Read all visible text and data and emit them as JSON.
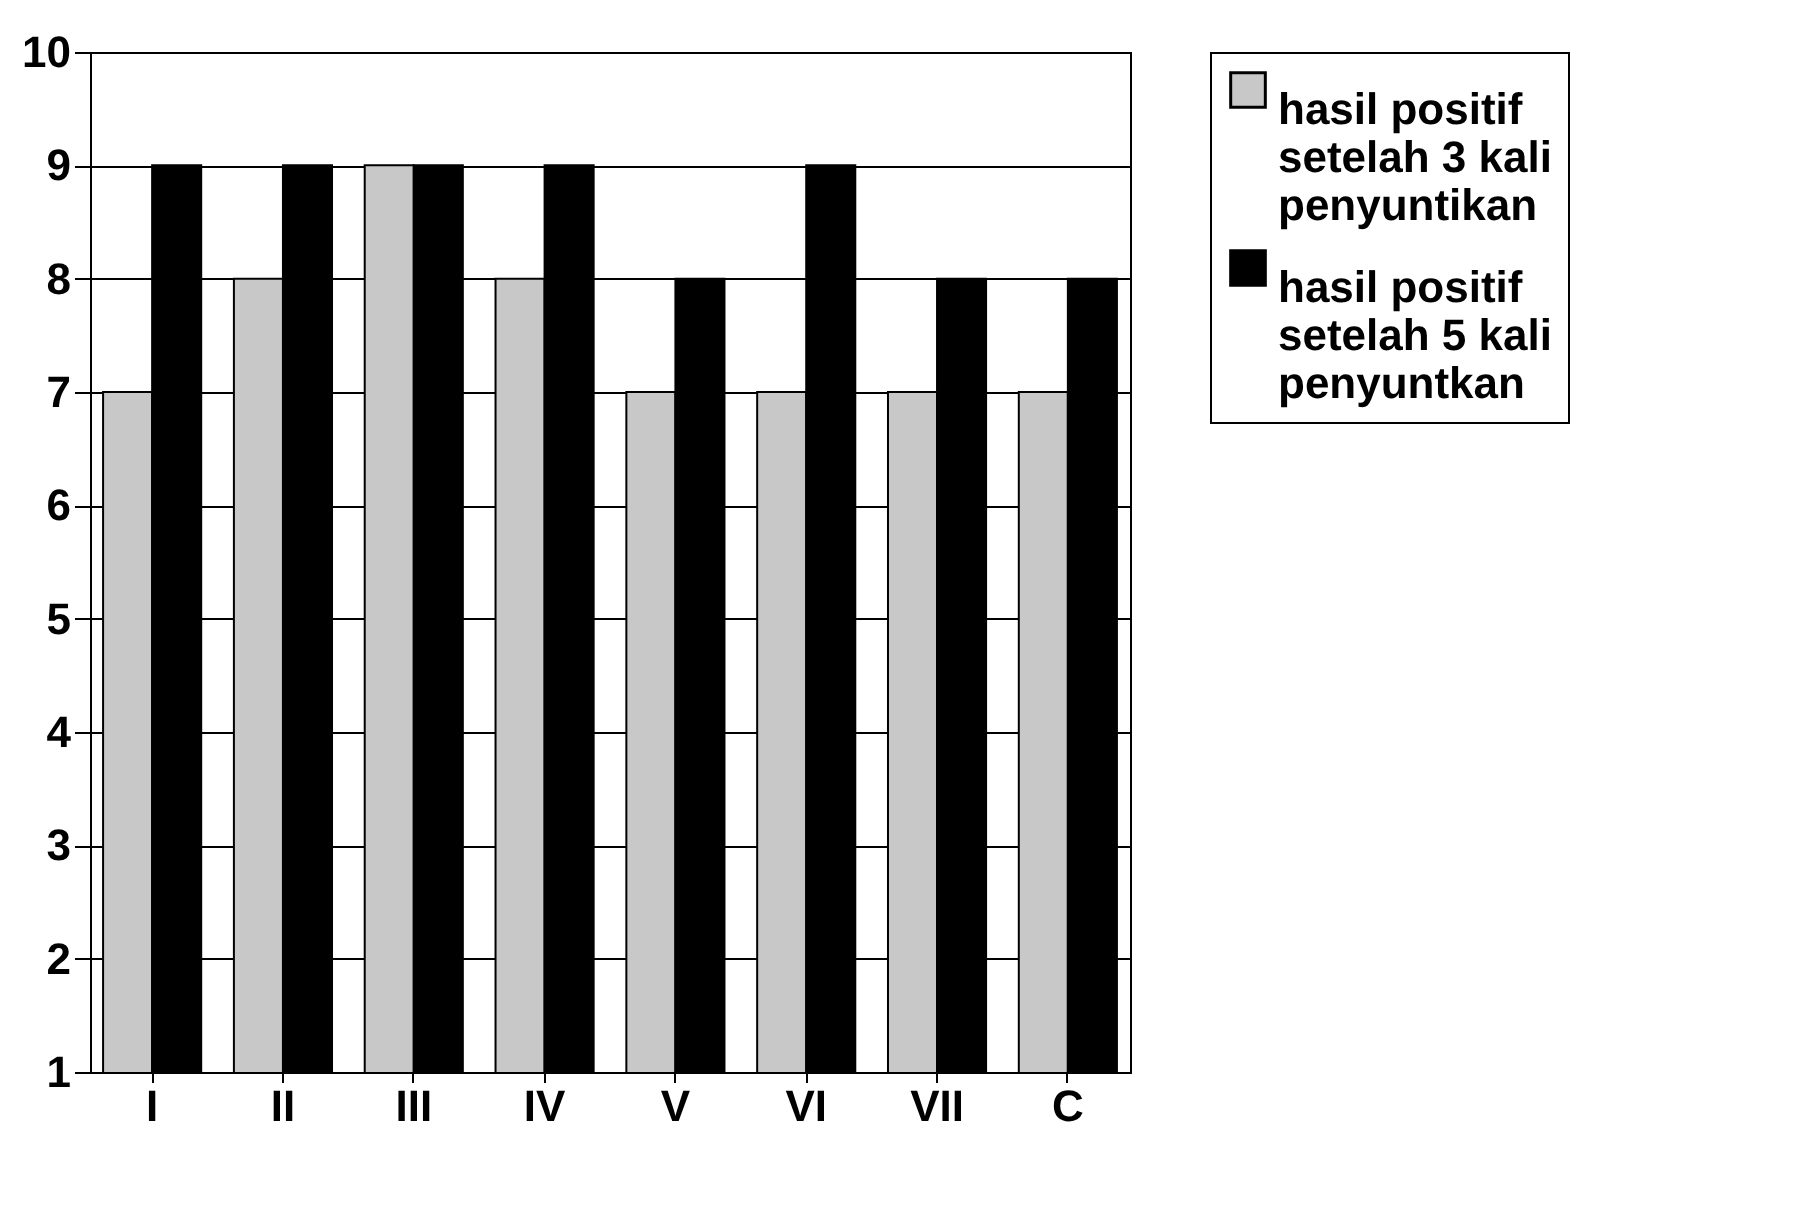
{
  "chart_data": {
    "type": "bar",
    "categories": [
      "I",
      "II",
      "III",
      "IV",
      "V",
      "VI",
      "VII",
      "C"
    ],
    "series": [
      {
        "name": "hasil positif setelah 3 kali penyuntikan",
        "color": "#c8c8c8",
        "values": [
          7,
          8,
          9,
          8,
          7,
          7,
          7,
          7
        ]
      },
      {
        "name": "hasil positif setelah 5 kali penyuntkan",
        "color": "#000000",
        "values": [
          9,
          9,
          9,
          9,
          8,
          9,
          8,
          8
        ]
      }
    ],
    "ylim": [
      1,
      10
    ],
    "yticks": [
      1,
      2,
      3,
      4,
      5,
      6,
      7,
      8,
      9,
      10
    ],
    "grid": "y",
    "legend": "right"
  }
}
